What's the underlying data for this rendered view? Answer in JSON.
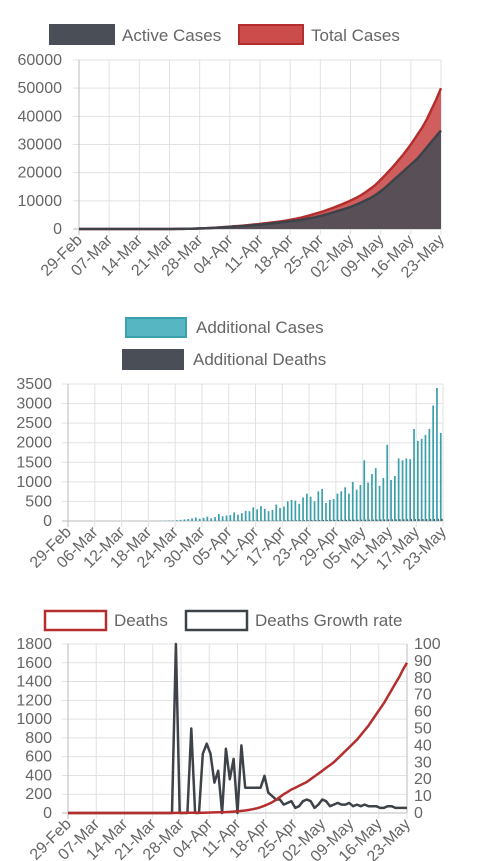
{
  "chart_data": [
    {
      "type": "area",
      "legend": {
        "position": "top"
      },
      "series": [
        {
          "name": "Active Cases",
          "color": "#4a4e57",
          "values": [
            0,
            0,
            0,
            0,
            0,
            0,
            0,
            0,
            0,
            0,
            0,
            0,
            0,
            0,
            0,
            0,
            0,
            0,
            0,
            0,
            10,
            20,
            40,
            60,
            100,
            150,
            200,
            270,
            350,
            450,
            550,
            650,
            750,
            850,
            950,
            1050,
            1200,
            1350,
            1500,
            1650,
            1800,
            2000,
            2200,
            2400,
            2600,
            2800,
            3000,
            3200,
            3500,
            3800,
            4100,
            4500,
            4900,
            5400,
            5900,
            6400,
            6900,
            7400,
            8000,
            8700,
            9400,
            10200,
            11000,
            12000,
            13200,
            14500,
            16000,
            17500,
            19000,
            20500,
            22000,
            23500,
            25000,
            27000,
            29000,
            31000,
            33000,
            35000
          ]
        },
        {
          "name": "Total Cases",
          "color": "#cc4c4c",
          "values": [
            0,
            0,
            0,
            0,
            0,
            0,
            0,
            0,
            0,
            0,
            0,
            0,
            0,
            0,
            0,
            0,
            0,
            0,
            0,
            0,
            10,
            20,
            40,
            70,
            110,
            160,
            220,
            290,
            370,
            470,
            580,
            700,
            820,
            950,
            1080,
            1220,
            1380,
            1550,
            1720,
            1900,
            2100,
            2300,
            2500,
            2750,
            3000,
            3300,
            3600,
            3950,
            4350,
            4800,
            5300,
            5800,
            6300,
            6900,
            7500,
            8150,
            8800,
            9500,
            10300,
            11100,
            12000,
            13100,
            14300,
            15600,
            17200,
            18900,
            20700,
            22500,
            24500,
            26500,
            28700,
            31000,
            33500,
            36000,
            39000,
            42500,
            46000,
            50000
          ]
        }
      ],
      "x_ticks": [
        "29-Feb",
        "07-Mar",
        "14-Mar",
        "21-Mar",
        "28-Mar",
        "04-Apr",
        "11-Apr",
        "18-Apr",
        "25-Apr",
        "02-May",
        "09-May",
        "16-May",
        "23-May"
      ],
      "y_ticks": [
        "0",
        "10000",
        "20000",
        "30000",
        "40000",
        "50000",
        "60000"
      ],
      "ylim": [
        0,
        60000
      ]
    },
    {
      "type": "bar",
      "legend": {
        "position": "top"
      },
      "series": [
        {
          "name": "Additional Cases",
          "color": "#3aa0ac",
          "values": [
            0,
            0,
            0,
            0,
            0,
            0,
            0,
            0,
            0,
            0,
            0,
            0,
            0,
            0,
            0,
            0,
            0,
            0,
            0,
            0,
            0,
            0,
            2,
            3,
            5,
            8,
            12,
            15,
            20,
            30,
            40,
            50,
            70,
            90,
            60,
            80,
            110,
            70,
            100,
            180,
            120,
            140,
            150,
            220,
            160,
            200,
            260,
            250,
            350,
            300,
            380,
            310,
            250,
            280,
            420,
            330,
            370,
            500,
            540,
            520,
            440,
            600,
            700,
            620,
            500,
            760,
            820,
            460,
            540,
            560,
            700,
            760,
            860,
            700,
            1000,
            800,
            920,
            1550,
            980,
            1200,
            1350,
            900,
            1100,
            1950,
            1050,
            1150,
            1600,
            1550,
            1600,
            1580,
            2350,
            2050,
            2100,
            2200,
            2350,
            2950,
            3400,
            2250
          ]
        },
        {
          "name": "Additional Deaths",
          "color": "#4a4e57",
          "values": [
            0,
            0,
            0,
            0,
            0,
            0,
            0,
            0,
            0,
            0,
            0,
            0,
            0,
            0,
            0,
            0,
            0,
            0,
            0,
            0,
            0,
            0,
            0,
            0,
            0,
            0,
            0,
            0,
            0,
            0,
            0,
            0,
            1,
            1,
            2,
            2,
            3,
            3,
            4,
            4,
            5,
            5,
            6,
            6,
            7,
            7,
            8,
            8,
            9,
            9,
            10,
            10,
            11,
            12,
            13,
            14,
            15,
            16,
            17,
            18,
            19,
            20,
            21,
            22,
            23,
            24,
            25,
            26,
            27,
            28,
            29,
            30,
            31,
            32,
            33,
            34,
            35,
            36,
            37,
            38,
            39,
            40,
            41,
            42,
            43,
            44,
            45,
            46,
            47,
            48,
            49,
            50,
            51,
            52,
            53,
            54,
            55,
            56
          ]
        }
      ],
      "x_ticks": [
        "29-Feb",
        "06-Mar",
        "12-Mar",
        "18-Mar",
        "24-Mar",
        "30-Mar",
        "05-Apr",
        "11-Apr",
        "17-Apr",
        "23-Apr",
        "29-Apr",
        "05-May",
        "11-May",
        "17-May",
        "23-May"
      ],
      "y_ticks": [
        "0",
        "500",
        "1000",
        "1500",
        "2000",
        "2500",
        "3000",
        "3500"
      ],
      "ylim": [
        0,
        3500
      ]
    },
    {
      "type": "line",
      "legend": {
        "position": "top"
      },
      "series": [
        {
          "name": "Deaths",
          "color": "#b52e2e",
          "axis": "left",
          "values": [
            0,
            0,
            0,
            0,
            0,
            0,
            0,
            0,
            0,
            0,
            0,
            0,
            0,
            0,
            0,
            0,
            0,
            0,
            0,
            0,
            0,
            0,
            0,
            0,
            0,
            0,
            0,
            0,
            1,
            1,
            1,
            2,
            2,
            2,
            3,
            3,
            4,
            5,
            6,
            7,
            8,
            10,
            12,
            15,
            18,
            22,
            27,
            33,
            40,
            50,
            62,
            78,
            95,
            115,
            140,
            170,
            200,
            225,
            250,
            270,
            290,
            310,
            330,
            360,
            390,
            420,
            450,
            480,
            510,
            540,
            580,
            620,
            660,
            700,
            740,
            780,
            830,
            880,
            930,
            990,
            1050,
            1110,
            1170,
            1240,
            1310,
            1380,
            1450,
            1530,
            1600
          ]
        },
        {
          "name": "Deaths Growth rate",
          "color": "#3e4249",
          "axis": "right",
          "values": [
            0,
            0,
            0,
            0,
            0,
            0,
            0,
            0,
            0,
            0,
            0,
            0,
            0,
            0,
            0,
            0,
            0,
            0,
            0,
            0,
            0,
            0,
            0,
            0,
            0,
            0,
            0,
            0,
            100,
            0,
            0,
            0,
            50,
            0,
            0,
            35,
            41,
            35,
            18,
            25,
            0,
            38,
            20,
            32,
            0,
            40,
            15,
            15,
            15,
            15,
            15,
            22,
            12,
            10,
            8,
            8,
            5,
            6,
            7,
            3,
            4,
            7,
            8,
            7,
            3,
            5,
            8,
            7,
            4,
            5,
            6,
            5,
            5,
            6,
            4,
            5,
            4,
            5,
            4,
            4,
            4,
            3,
            3,
            4,
            4,
            3,
            3,
            3,
            3
          ]
        }
      ],
      "x_ticks": [
        "29-Feb",
        "07-Mar",
        "14-Mar",
        "21-Mar",
        "28-Mar",
        "04-Apr",
        "11-Apr",
        "18-Apr",
        "25-Apr",
        "02-May",
        "09-May",
        "16-May",
        "23-May"
      ],
      "y_ticks": [
        "0",
        "200",
        "400",
        "600",
        "800",
        "1000",
        "1200",
        "1400",
        "1600",
        "1800"
      ],
      "y2_ticks": [
        "0",
        "10",
        "20",
        "30",
        "40",
        "50",
        "60",
        "70",
        "80",
        "90",
        "100"
      ],
      "ylim": [
        0,
        1800
      ],
      "y2lim": [
        0,
        100
      ]
    }
  ]
}
